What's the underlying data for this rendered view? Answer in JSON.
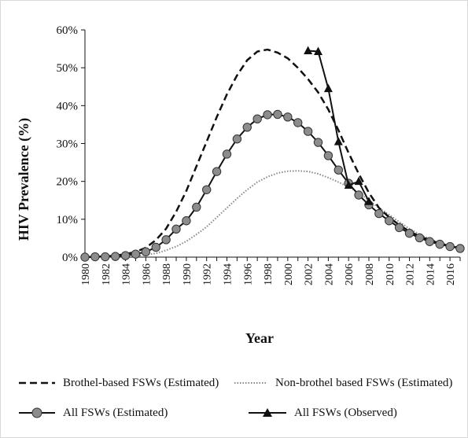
{
  "chart_data": {
    "type": "line",
    "title": "",
    "xlabel": "Year",
    "ylabel": "HIV Prevalence (%)",
    "ylim": [
      0,
      60
    ],
    "yticks": [
      "0%",
      "10%",
      "20%",
      "30%",
      "40%",
      "50%",
      "60%"
    ],
    "xlim": [
      1980,
      2017
    ],
    "xticks": [
      "1980",
      "1982",
      "1984",
      "1986",
      "1988",
      "1990",
      "1992",
      "1994",
      "1996",
      "1998",
      "2000",
      "2002",
      "2004",
      "2006",
      "2008",
      "2010",
      "2012",
      "2014",
      "2016"
    ],
    "grid": false,
    "legend_position": "bottom",
    "series": [
      {
        "name": "Brothel-based FSWs (Estimated)",
        "style": "dashed",
        "color": "#111111",
        "x": [
          1980,
          1981,
          1982,
          1983,
          1984,
          1985,
          1986,
          1987,
          1988,
          1989,
          1990,
          1991,
          1992,
          1993,
          1994,
          1995,
          1996,
          1997,
          1998,
          1999,
          2000,
          2001,
          2002,
          2003,
          2004,
          2005,
          2006,
          2007,
          2008,
          2009,
          2010,
          2011,
          2012,
          2013,
          2014,
          2015,
          2016,
          2017
        ],
        "values": [
          0,
          0.1,
          0.2,
          0.4,
          0.8,
          1.4,
          2.5,
          4.5,
          7.5,
          12,
          17.5,
          24,
          30.5,
          37,
          43,
          48,
          52,
          54.3,
          54.8,
          54,
          52.5,
          50,
          47,
          43.5,
          39,
          33.5,
          27.5,
          22,
          17,
          13,
          10.5,
          8.5,
          6.8,
          5.5,
          4.5,
          3.6,
          2.9,
          2.4
        ]
      },
      {
        "name": "Non-brothel based FSWs (Estimated)",
        "style": "dotted",
        "color": "#888888",
        "x": [
          1980,
          1981,
          1982,
          1983,
          1984,
          1985,
          1986,
          1987,
          1988,
          1989,
          1990,
          1991,
          1992,
          1993,
          1994,
          1995,
          1996,
          1997,
          1998,
          1999,
          2000,
          2001,
          2002,
          2003,
          2004,
          2005,
          2006,
          2007,
          2008,
          2009,
          2010,
          2011,
          2012,
          2013,
          2014,
          2015,
          2016,
          2017
        ],
        "values": [
          0,
          0,
          0,
          0.1,
          0.2,
          0.3,
          0.6,
          1,
          1.8,
          2.8,
          4.2,
          6,
          8,
          10.5,
          13,
          15.5,
          17.8,
          19.8,
          21.2,
          22.2,
          22.7,
          22.8,
          22.6,
          22,
          21,
          19.8,
          18.5,
          17,
          15,
          13,
          11.2,
          9.3,
          7.5,
          6,
          4.8,
          3.8,
          3,
          2.4
        ]
      },
      {
        "name": "All FSWs (Estimated)",
        "style": "solid-circle",
        "color": "#111111",
        "x": [
          1980,
          1981,
          1982,
          1983,
          1984,
          1985,
          1986,
          1987,
          1988,
          1989,
          1990,
          1991,
          1992,
          1993,
          1994,
          1995,
          1996,
          1997,
          1998,
          1999,
          2000,
          2001,
          2002,
          2003,
          2004,
          2005,
          2006,
          2007,
          2008,
          2009,
          2010,
          2011,
          2012,
          2013,
          2014,
          2015,
          2016,
          2017
        ],
        "values": [
          0,
          0.1,
          0.1,
          0.2,
          0.4,
          0.8,
          1.4,
          2.6,
          4.6,
          7.4,
          9.6,
          13.2,
          17.8,
          22.6,
          27.2,
          31.2,
          34.3,
          36.5,
          37.6,
          37.7,
          37,
          35.5,
          33.2,
          30.3,
          26.8,
          23,
          19.5,
          16.4,
          13.8,
          11.5,
          9.6,
          7.8,
          6.3,
          5.1,
          4.1,
          3.4,
          2.8,
          2.3
        ]
      },
      {
        "name": "All FSWs (Observed)",
        "style": "solid-triangle",
        "color": "#111111",
        "x": [
          2002,
          2003,
          2004,
          2005,
          2006,
          2007,
          2008
        ],
        "values": [
          54.5,
          54.3,
          44.5,
          30.5,
          19,
          20,
          14.7
        ]
      }
    ]
  }
}
